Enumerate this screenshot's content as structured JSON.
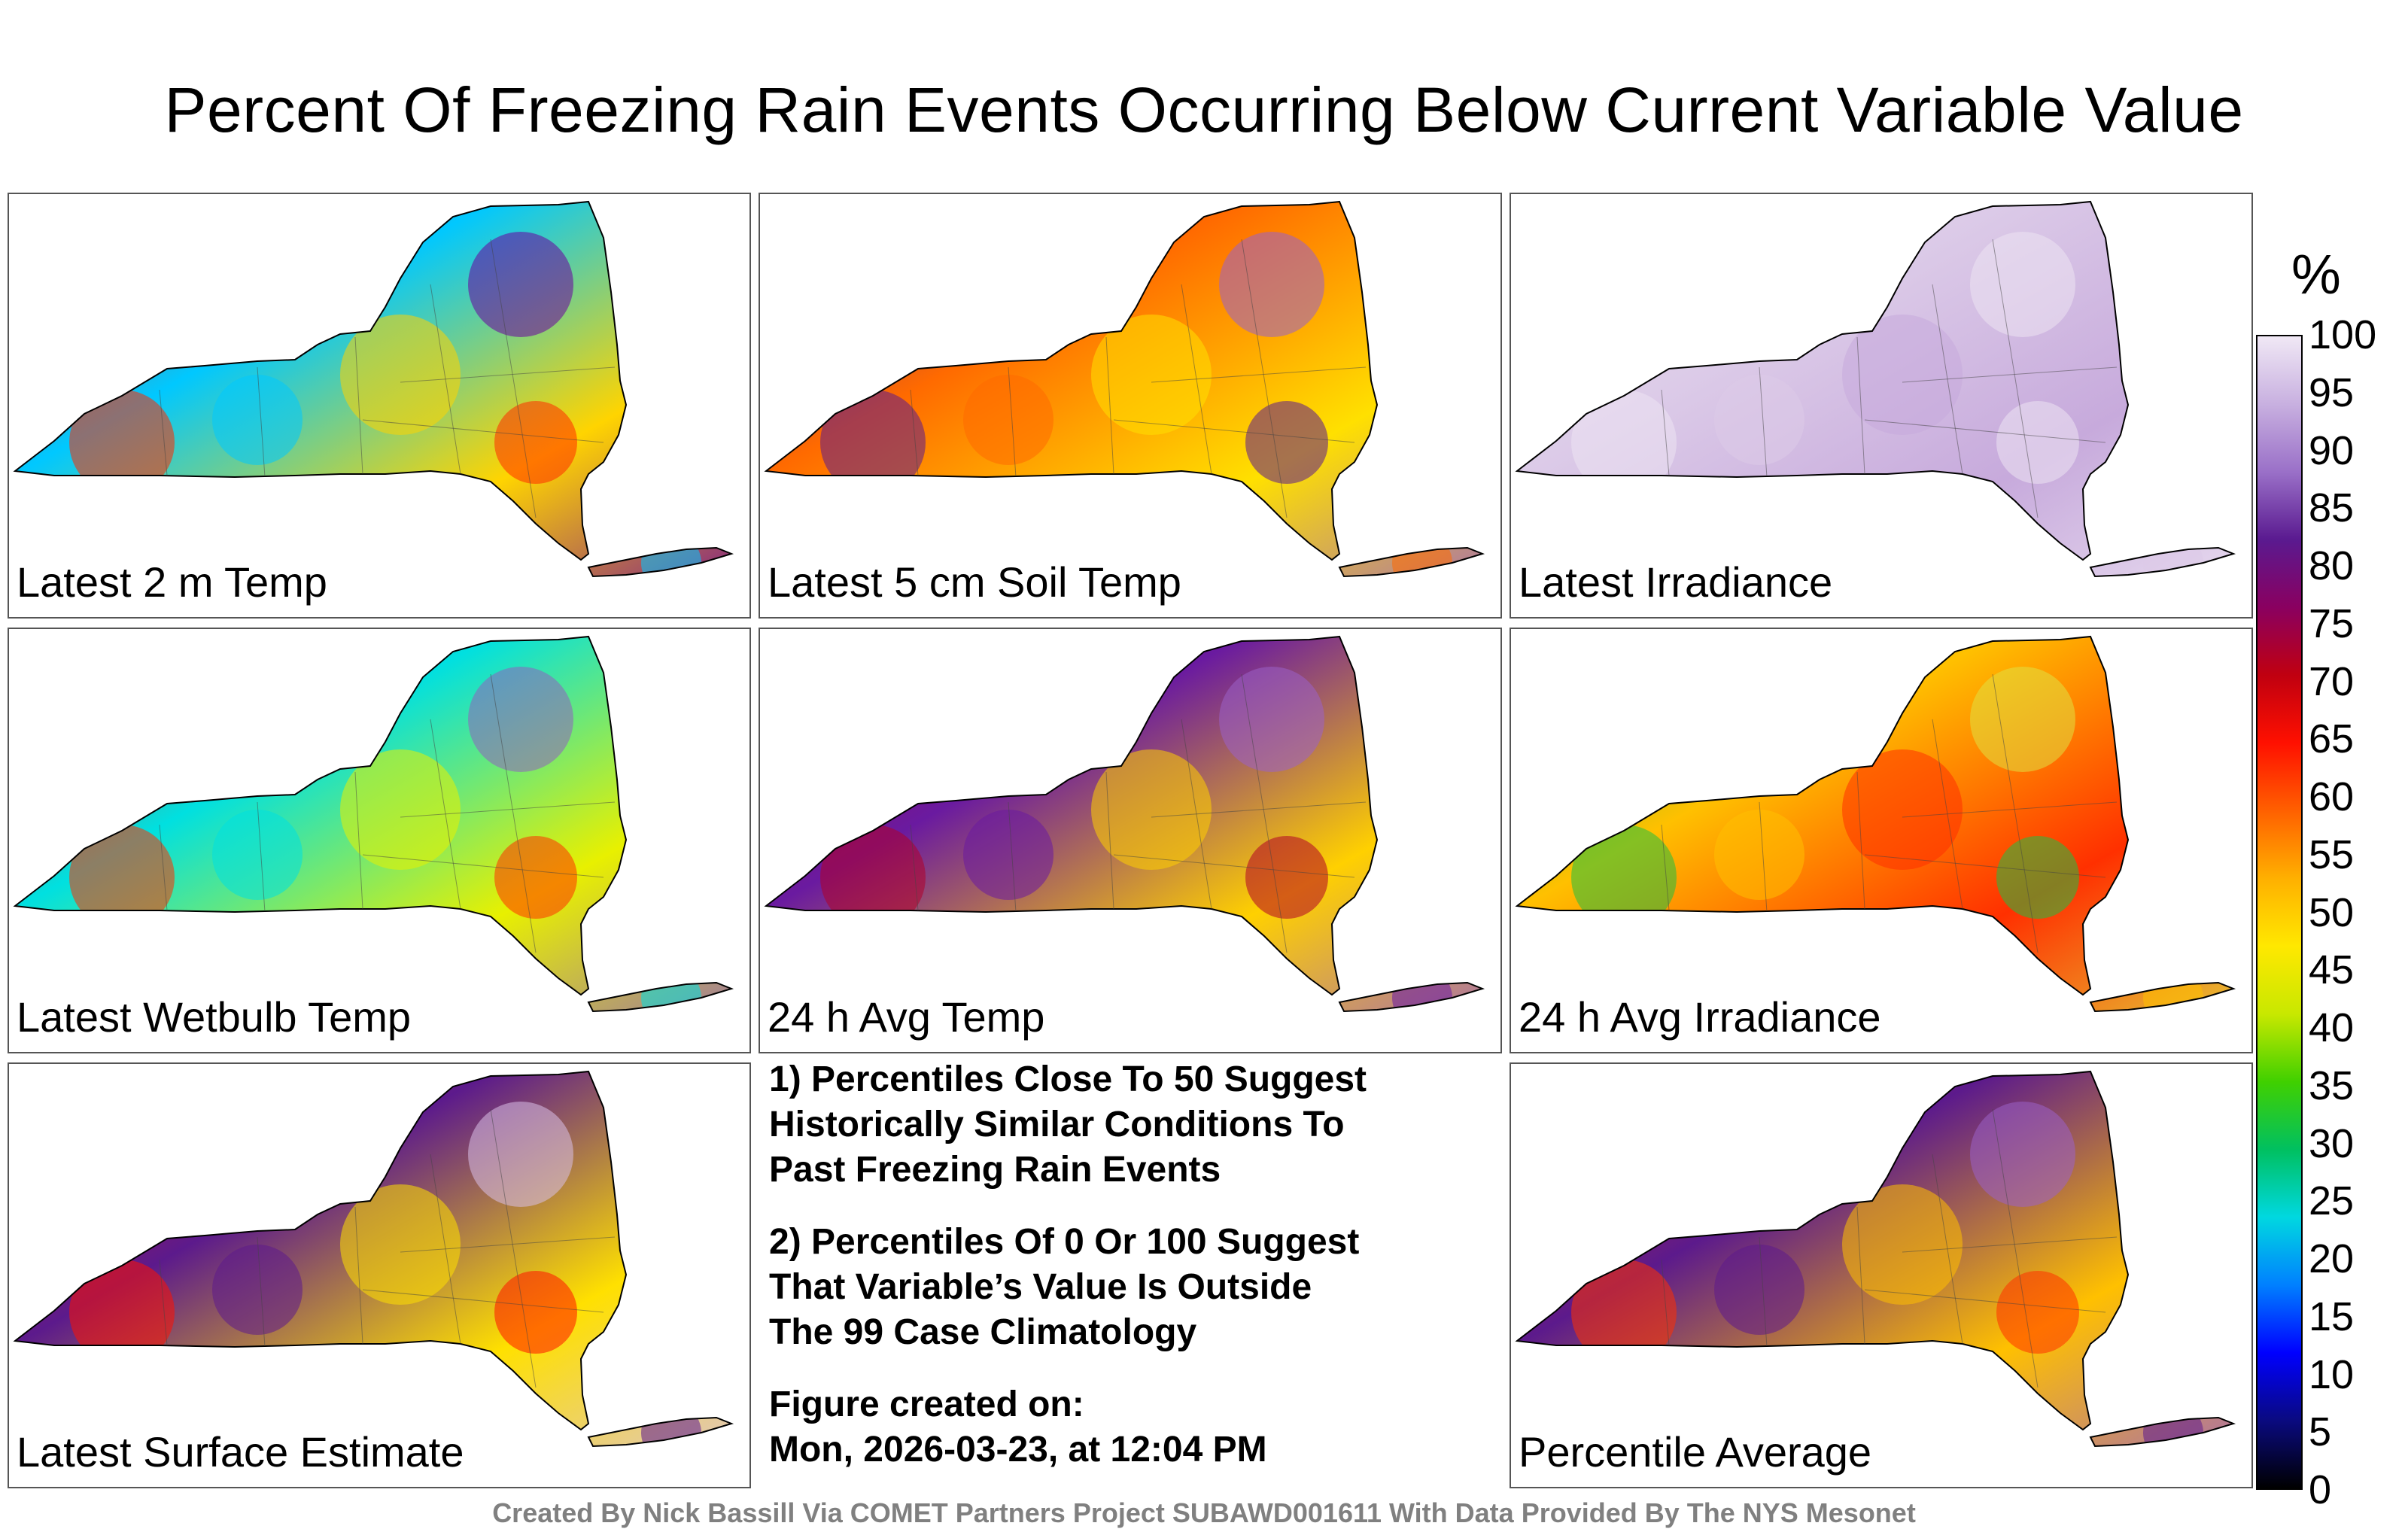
{
  "title": "Percent Of Freezing Rain Events Occurring Below Current Variable Value",
  "panels": [
    {
      "label": "Latest 2 m Temp",
      "colors": [
        "#ff2a00",
        "#00c8ff",
        "#ffd400",
        "#6a00a0"
      ]
    },
    {
      "label": "Latest 5 cm Soil Temp",
      "colors": [
        "#5c1a8c",
        "#ff6a00",
        "#ffe000",
        "#9a60c8"
      ]
    },
    {
      "label": "Latest Irradiance",
      "colors": [
        "#ede3f2",
        "#dccbe8",
        "#c7aadc",
        "#ede3f2"
      ]
    },
    {
      "label": "Latest Wetbulb Temp",
      "colors": [
        "#ff3000",
        "#00e0e0",
        "#e8f000",
        "#9060c0"
      ]
    },
    {
      "label": "24 h Avg Temp",
      "colors": [
        "#b00028",
        "#6a1aa0",
        "#ffd000",
        "#9a60c8"
      ]
    },
    {
      "label": "24 h Avg Irradiance",
      "colors": [
        "#20c040",
        "#ffc000",
        "#ff3000",
        "#e0e040"
      ]
    },
    {
      "label": "Latest Surface Estimate",
      "colors": [
        "#ff1000",
        "#5c1a8c",
        "#ffe000",
        "#d8c0e8"
      ]
    },
    {
      "label": "Percentile Average",
      "colors": [
        "#ff3000",
        "#5c1a8c",
        "#ffc000",
        "#9a60c8"
      ]
    }
  ],
  "notes": {
    "line1": "1) Percentiles Close To 50 Suggest",
    "line2": "Historically Similar Conditions To",
    "line3": "Past Freezing Rain Events",
    "line4": "2) Percentiles Of 0 Or 100 Suggest",
    "line5": "That Variable’s Value Is Outside",
    "line6": "The 99 Case Climatology",
    "created_label": "Figure created on:",
    "created_value": "Mon, 2026-03-23, at 12:04 PM"
  },
  "colorbar": {
    "unit": "%",
    "ticks": [
      "100",
      "95",
      "90",
      "85",
      "80",
      "75",
      "70",
      "65",
      "60",
      "55",
      "50",
      "45",
      "40",
      "35",
      "30",
      "25",
      "20",
      "15",
      "10",
      "5",
      "0"
    ],
    "stops": [
      "#000000",
      "#0a0a80",
      "#0000ff",
      "#0080ff",
      "#00d8e0",
      "#00c060",
      "#40d000",
      "#c8e800",
      "#ffe800",
      "#ffb000",
      "#ff6000",
      "#ff1000",
      "#c00010",
      "#8a0060",
      "#5a1a90",
      "#9a70c8",
      "#c8b0e0",
      "#f0e8f5"
    ]
  },
  "footer": "Created By Nick Bassill Via COMET Partners Project SUBAWD001611 With Data Provided By The NYS Mesonet"
}
